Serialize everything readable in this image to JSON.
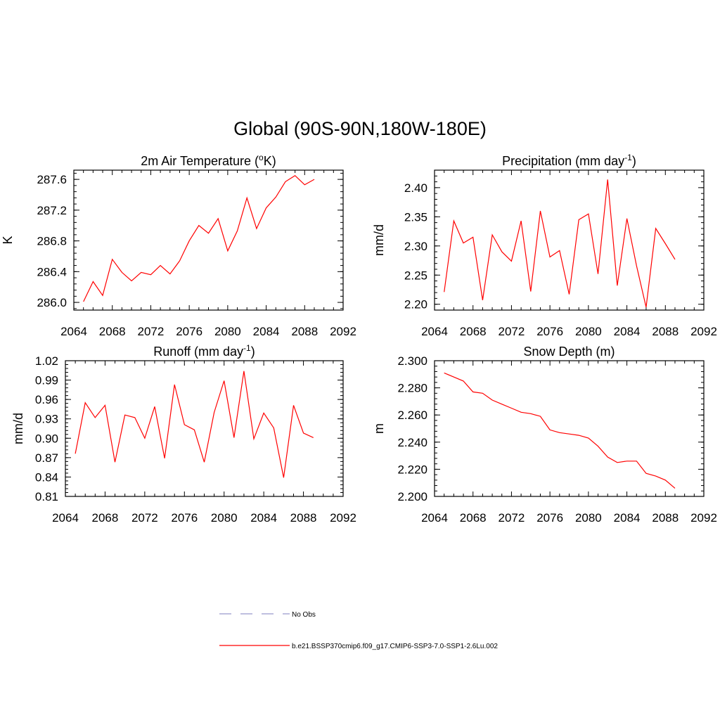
{
  "page_title": "Global (90S-90N,180W-180E)",
  "legend": {
    "items": [
      {
        "label": "No Obs",
        "style": "dashed",
        "color": "#9999cc"
      },
      {
        "label": "b.e21.BSSP370cmip6.f09_g17.CMIP6-SSP3-7.0-SSP1-2.6Lu.002",
        "style": "solid",
        "color": "#ff0000"
      }
    ]
  },
  "chart_data": [
    {
      "type": "line",
      "title": "2m Air Temperature (",
      "title_sup": "o",
      "title_suffix": "K)",
      "ylabel": "K",
      "xlabel": "",
      "xlim": [
        2064,
        2092
      ],
      "xticks": [
        2064,
        2068,
        2072,
        2076,
        2080,
        2084,
        2088,
        2092
      ],
      "ylim": [
        285.9,
        287.72
      ],
      "yticks": [
        "286.0",
        "286.4",
        "286.8",
        "287.2",
        "287.6"
      ],
      "grid": false,
      "series": [
        {
          "color": "#ff0000",
          "x": [
            2065,
            2066,
            2067,
            2068,
            2069,
            2070,
            2071,
            2072,
            2073,
            2074,
            2075,
            2076,
            2077,
            2078,
            2079,
            2080,
            2081,
            2082,
            2083,
            2084,
            2085,
            2086,
            2087,
            2088,
            2089
          ],
          "values": [
            286.01,
            286.27,
            286.09,
            286.56,
            286.39,
            286.28,
            286.39,
            286.36,
            286.48,
            286.37,
            286.54,
            286.8,
            287.0,
            286.9,
            287.09,
            286.67,
            286.93,
            287.36,
            286.96,
            287.23,
            287.37,
            287.57,
            287.65,
            287.53,
            287.6
          ]
        }
      ]
    },
    {
      "type": "line",
      "title": "Precipitation (mm day",
      "title_sup": "-1",
      "title_suffix": ")",
      "ylabel": "mm/d",
      "xlabel": "",
      "xlim": [
        2064,
        2092
      ],
      "xticks": [
        2064,
        2068,
        2072,
        2076,
        2080,
        2084,
        2088,
        2092
      ],
      "ylim": [
        2.19,
        2.43
      ],
      "yticks": [
        "2.20",
        "2.25",
        "2.30",
        "2.35",
        "2.40"
      ],
      "grid": false,
      "series": [
        {
          "color": "#ff0000",
          "x": [
            2065,
            2066,
            2067,
            2068,
            2069,
            2070,
            2071,
            2072,
            2073,
            2074,
            2075,
            2076,
            2077,
            2078,
            2079,
            2080,
            2081,
            2082,
            2083,
            2084,
            2085,
            2086,
            2087,
            2088,
            2089
          ],
          "values": [
            2.221,
            2.343,
            2.305,
            2.315,
            2.207,
            2.319,
            2.29,
            2.274,
            2.343,
            2.222,
            2.36,
            2.281,
            2.292,
            2.217,
            2.345,
            2.355,
            2.252,
            2.414,
            2.232,
            2.347,
            2.266,
            2.195,
            2.33,
            2.304,
            2.277
          ]
        }
      ]
    },
    {
      "type": "line",
      "title": "Runoff (mm day",
      "title_sup": "-1",
      "title_suffix": ")",
      "ylabel": "mm/d",
      "xlabel": "",
      "xlim": [
        2064,
        2092
      ],
      "xticks": [
        2064,
        2068,
        2072,
        2076,
        2080,
        2084,
        2088,
        2092
      ],
      "ylim": [
        0.81,
        1.02
      ],
      "yticks": [
        "0.81",
        "0.84",
        "0.87",
        "0.90",
        "0.93",
        "0.96",
        "0.99",
        "1.02"
      ],
      "grid": false,
      "series": [
        {
          "color": "#ff0000",
          "x": [
            2065,
            2066,
            2067,
            2068,
            2069,
            2070,
            2071,
            2072,
            2073,
            2074,
            2075,
            2076,
            2077,
            2078,
            2079,
            2080,
            2081,
            2082,
            2083,
            2084,
            2085,
            2086,
            2087,
            2088,
            2089
          ],
          "values": [
            0.876,
            0.955,
            0.932,
            0.951,
            0.863,
            0.936,
            0.932,
            0.9,
            0.949,
            0.869,
            0.983,
            0.921,
            0.913,
            0.863,
            0.94,
            0.989,
            0.901,
            1.004,
            0.899,
            0.939,
            0.916,
            0.839,
            0.951,
            0.908,
            0.901
          ]
        }
      ]
    },
    {
      "type": "line",
      "title": "Snow Depth (m)",
      "title_sup": "",
      "title_suffix": "",
      "ylabel": "m",
      "xlabel": "",
      "xlim": [
        2064,
        2092
      ],
      "xticks": [
        2064,
        2068,
        2072,
        2076,
        2080,
        2084,
        2088,
        2092
      ],
      "ylim": [
        2.2,
        2.3
      ],
      "yticks": [
        "2.200",
        "2.220",
        "2.240",
        "2.260",
        "2.280",
        "2.300"
      ],
      "grid": false,
      "series": [
        {
          "color": "#ff0000",
          "x": [
            2065,
            2066,
            2067,
            2068,
            2069,
            2070,
            2071,
            2072,
            2073,
            2074,
            2075,
            2076,
            2077,
            2078,
            2079,
            2080,
            2081,
            2082,
            2083,
            2084,
            2085,
            2086,
            2087,
            2088,
            2089
          ],
          "values": [
            2.291,
            2.288,
            2.285,
            2.277,
            2.276,
            2.271,
            2.268,
            2.265,
            2.262,
            2.261,
            2.259,
            2.249,
            2.247,
            2.246,
            2.245,
            2.243,
            2.237,
            2.229,
            2.225,
            2.226,
            2.226,
            2.217,
            2.215,
            2.212,
            2.206
          ]
        }
      ]
    }
  ]
}
